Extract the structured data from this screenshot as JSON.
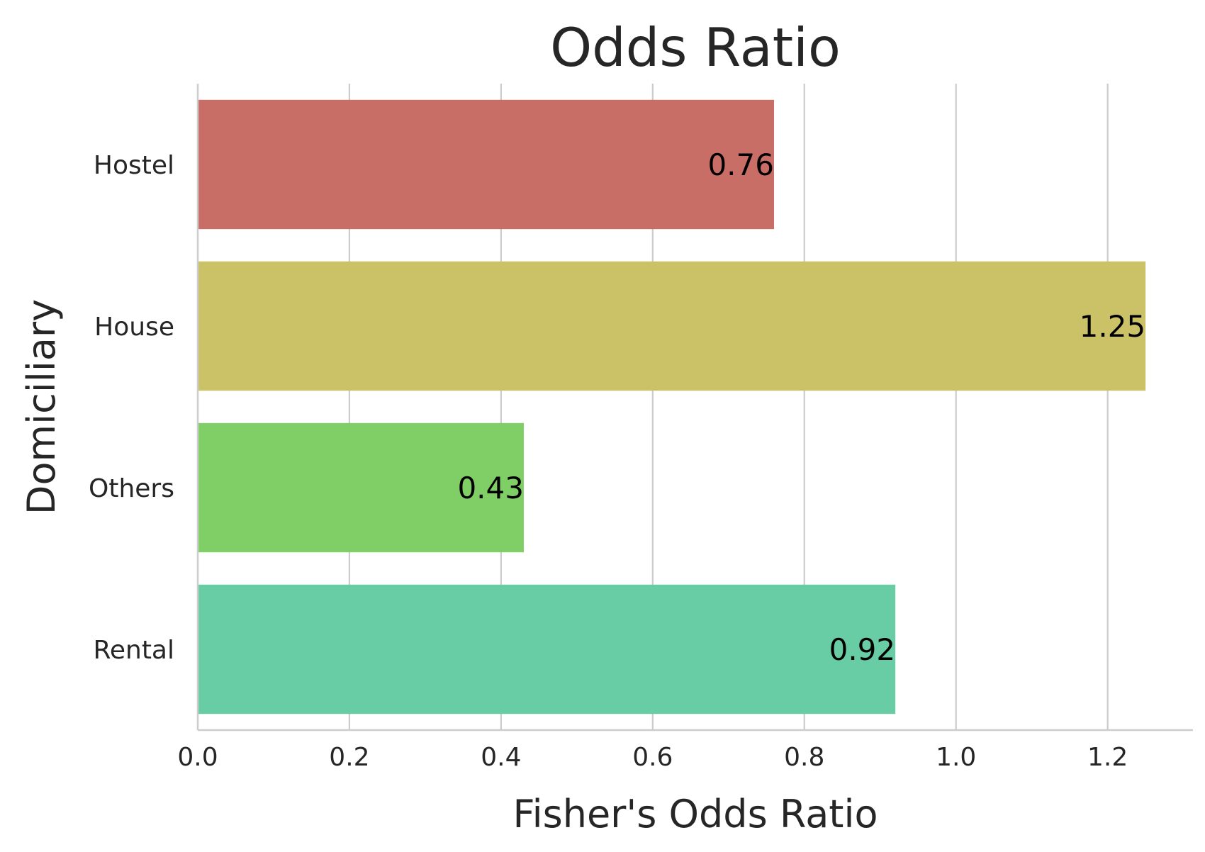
{
  "chart_data": {
    "type": "bar",
    "orientation": "horizontal",
    "title": "Odds Ratio",
    "xlabel": "Fisher's Odds Ratio",
    "ylabel": "Domiciliary",
    "categories": [
      "Hostel",
      "House",
      "Others",
      "Rental"
    ],
    "values": [
      0.76,
      1.25,
      0.43,
      0.92
    ],
    "value_labels": [
      "0.76",
      "1.25",
      "0.43",
      "0.92"
    ],
    "colors": [
      "#c96d67",
      "#cbc268",
      "#80cf66",
      "#68cca5"
    ],
    "xlim": [
      0,
      1.3125
    ],
    "xticks": [
      0.0,
      0.2,
      0.4,
      0.6,
      0.8,
      1.0,
      1.2
    ],
    "xtick_labels": [
      "0.0",
      "0.2",
      "0.4",
      "0.6",
      "0.8",
      "1.0",
      "1.2"
    ],
    "grid": "vertical",
    "legend": "none"
  }
}
